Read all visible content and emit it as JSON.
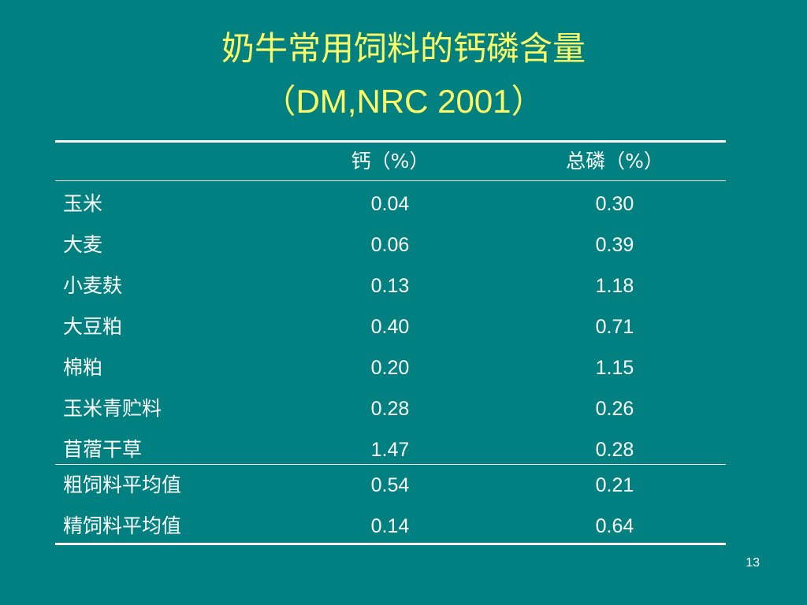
{
  "title": {
    "line1": "奶牛常用饲料的钙磷含量",
    "line2": "（DM,NRC  2001）"
  },
  "table": {
    "headers": [
      "",
      "钙（%）",
      "总磷（%）"
    ],
    "rows": [
      [
        "玉米",
        "0.04",
        "0.30"
      ],
      [
        "大麦",
        "0.06",
        "0.39"
      ],
      [
        "小麦麸",
        "0.13",
        "1.18"
      ],
      [
        "大豆粕",
        "0.40",
        "0.71"
      ],
      [
        "棉粕",
        "0.20",
        "1.15"
      ],
      [
        "玉米青贮料",
        "0.28",
        "0.26"
      ],
      [
        "苜蓿干草",
        "1.47",
        "0.28"
      ],
      [
        "粗饲料平均值",
        "0.54",
        "0.21"
      ],
      [
        "精饲料平均值",
        "0.14",
        "0.64"
      ]
    ]
  },
  "page_number": "13",
  "colors": {
    "background": "#008080",
    "title": "#ffff66",
    "text": "#ffffff"
  }
}
